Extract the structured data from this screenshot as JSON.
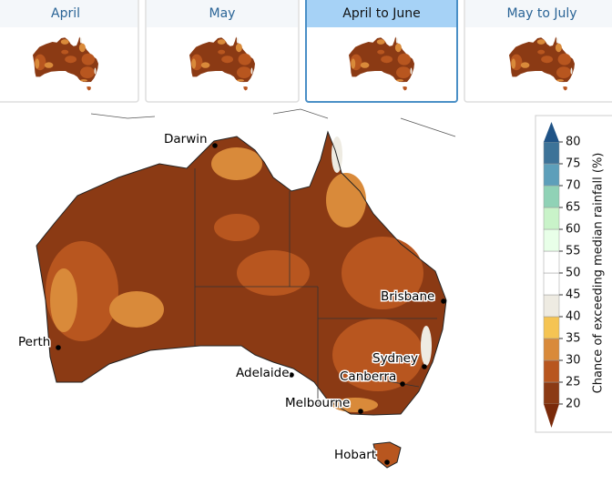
{
  "tabs": [
    {
      "label": "April",
      "active": false
    },
    {
      "label": "May",
      "active": false
    },
    {
      "label": "April to June",
      "active": true
    },
    {
      "label": "May to July",
      "active": false
    }
  ],
  "cities": [
    {
      "name": "Darwin"
    },
    {
      "name": "Perth"
    },
    {
      "name": "Adelaide"
    },
    {
      "name": "Melbourne"
    },
    {
      "name": "Canberra"
    },
    {
      "name": "Sydney"
    },
    {
      "name": "Brisbane"
    },
    {
      "name": "Hobart"
    }
  ],
  "legend": {
    "title": "Chance of exceeding median rainfall (%)",
    "ticks": [
      20,
      25,
      30,
      35,
      40,
      45,
      50,
      55,
      60,
      65,
      70,
      75,
      80
    ],
    "colors": [
      "#8b3a14",
      "#b8561f",
      "#d98a3a",
      "#f5c453",
      "#eeebe2",
      "#ffffff",
      "#ffffff",
      "#e8ffe8",
      "#c9f3c9",
      "#90d2b6",
      "#5d9fba",
      "#3d7398"
    ],
    "low_color": "#7a2a0a",
    "high_color": "#1f5386"
  }
}
